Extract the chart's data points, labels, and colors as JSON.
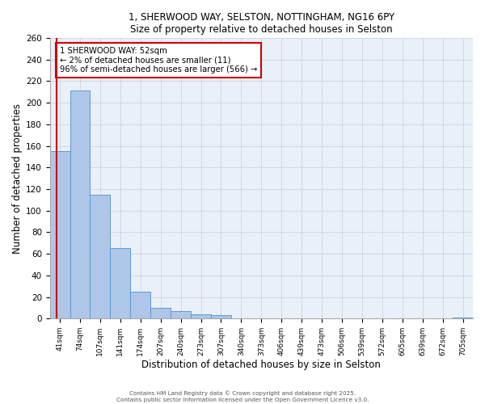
{
  "title1": "1, SHERWOOD WAY, SELSTON, NOTTINGHAM, NG16 6PY",
  "title2": "Size of property relative to detached houses in Selston",
  "xlabel": "Distribution of detached houses by size in Selston",
  "ylabel": "Number of detached properties",
  "bar_categories": [
    "41sqm",
    "74sqm",
    "107sqm",
    "141sqm",
    "174sqm",
    "207sqm",
    "240sqm",
    "273sqm",
    "307sqm",
    "340sqm",
    "373sqm",
    "406sqm",
    "439sqm",
    "473sqm",
    "506sqm",
    "539sqm",
    "572sqm",
    "605sqm",
    "639sqm",
    "672sqm",
    "705sqm"
  ],
  "bar_values": [
    155,
    211,
    115,
    65,
    25,
    10,
    7,
    4,
    3,
    0,
    0,
    0,
    0,
    0,
    0,
    0,
    0,
    0,
    0,
    0,
    1
  ],
  "bar_color": "#aec6e8",
  "bar_edge_color": "#5b9bd5",
  "grid_color": "#d0d8e8",
  "bg_color": "#eaf0f8",
  "property_line_label": "1 SHERWOOD WAY: 52sqm",
  "annotation_line1": "← 2% of detached houses are smaller (11)",
  "annotation_line2": "96% of semi-detached houses are larger (566) →",
  "annotation_box_color": "#ffffff",
  "annotation_box_edge": "#cc0000",
  "vline_color": "#cc0000",
  "footer1": "Contains HM Land Registry data © Crown copyright and database right 2025.",
  "footer2": "Contains public sector information licensed under the Open Government Licence v3.0.",
  "ylim": [
    0,
    260
  ],
  "yticks": [
    0,
    20,
    40,
    60,
    80,
    100,
    120,
    140,
    160,
    180,
    200,
    220,
    240,
    260
  ],
  "vline_x": -0.17
}
